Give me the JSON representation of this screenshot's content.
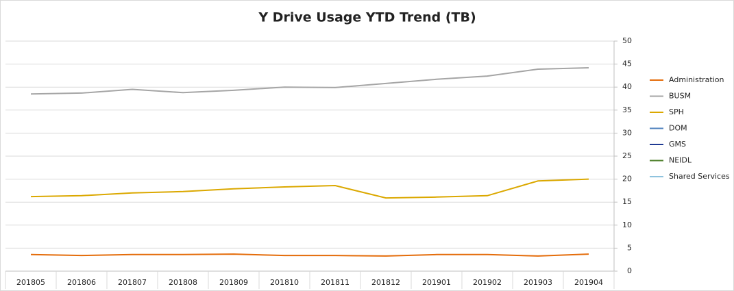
{
  "chart_data": {
    "type": "line",
    "title": "Y Drive Usage YTD Trend (TB)",
    "categories": [
      "201805",
      "201806",
      "201807",
      "201808",
      "201809",
      "201810",
      "201811",
      "201812",
      "201901",
      "201902",
      "201903",
      "201904"
    ],
    "series": [
      {
        "name": "Administration",
        "color": "#e46c0a",
        "values": [
          3.6,
          3.4,
          3.6,
          3.6,
          3.7,
          3.4,
          3.4,
          3.3,
          3.6,
          3.6,
          3.3,
          3.7
        ]
      },
      {
        "name": "BUSM",
        "color": "#a5a5a5",
        "values": [
          38.5,
          38.7,
          39.5,
          38.8,
          39.3,
          40.0,
          39.9,
          40.8,
          41.7,
          42.4,
          43.9,
          44.2
        ]
      },
      {
        "name": "SPH",
        "color": "#dba800",
        "values": [
          16.2,
          16.4,
          17.0,
          17.3,
          17.9,
          18.3,
          18.6,
          15.9,
          16.1,
          16.4,
          19.6,
          20.0
        ]
      },
      {
        "name": "DOM",
        "color": "#4f81bd",
        "values": [
          null,
          null,
          null,
          null,
          null,
          null,
          null,
          null,
          null,
          null,
          null,
          null
        ]
      },
      {
        "name": "GMS",
        "color": "#1f3a93",
        "values": [
          null,
          null,
          null,
          null,
          null,
          null,
          null,
          null,
          null,
          null,
          null,
          null
        ]
      },
      {
        "name": "NEIDL",
        "color": "#4e7f2a",
        "values": [
          null,
          null,
          null,
          null,
          null,
          null,
          null,
          null,
          null,
          null,
          null,
          null
        ]
      },
      {
        "name": "Shared Services",
        "color": "#8fc3de",
        "values": [
          null,
          null,
          null,
          null,
          null,
          null,
          null,
          null,
          null,
          null,
          null,
          null
        ]
      }
    ],
    "ylim": [
      0,
      50
    ],
    "yticks": [
      0,
      5,
      10,
      15,
      20,
      25,
      30,
      35,
      40,
      45,
      50
    ],
    "grid": true,
    "y_axis_side": "right",
    "legend": "right"
  }
}
